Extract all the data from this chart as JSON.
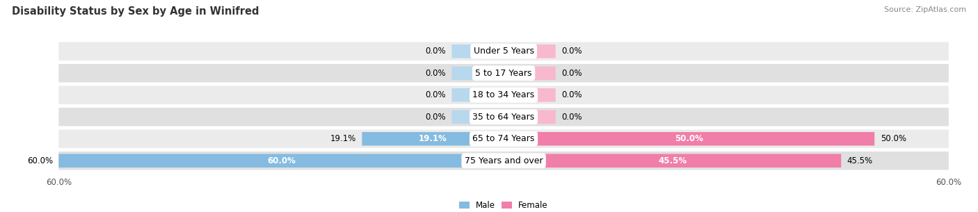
{
  "title": "Disability Status by Sex by Age in Winifred",
  "source": "Source: ZipAtlas.com",
  "categories": [
    "Under 5 Years",
    "5 to 17 Years",
    "18 to 34 Years",
    "35 to 64 Years",
    "65 to 74 Years",
    "75 Years and over"
  ],
  "male_values": [
    0.0,
    0.0,
    0.0,
    0.0,
    19.1,
    60.0
  ],
  "female_values": [
    0.0,
    0.0,
    0.0,
    0.0,
    50.0,
    45.5
  ],
  "male_color": "#85BBE0",
  "female_color": "#F07EA8",
  "male_color_light": "#B8D8EE",
  "female_color_light": "#F8B8CE",
  "male_label": "Male",
  "female_label": "Female",
  "xlim": 60.0,
  "bar_height": 0.62,
  "row_bg_colors": [
    "#EBEBEB",
    "#E0E0E0",
    "#EBEBEB",
    "#E0E0E0",
    "#EBEBEB",
    "#E0E0E0"
  ],
  "title_fontsize": 10.5,
  "source_fontsize": 8,
  "label_fontsize": 8.5,
  "tick_fontsize": 8.5,
  "category_fontsize": 9,
  "figure_bg": "#FFFFFF",
  "zero_stub": 7.0
}
